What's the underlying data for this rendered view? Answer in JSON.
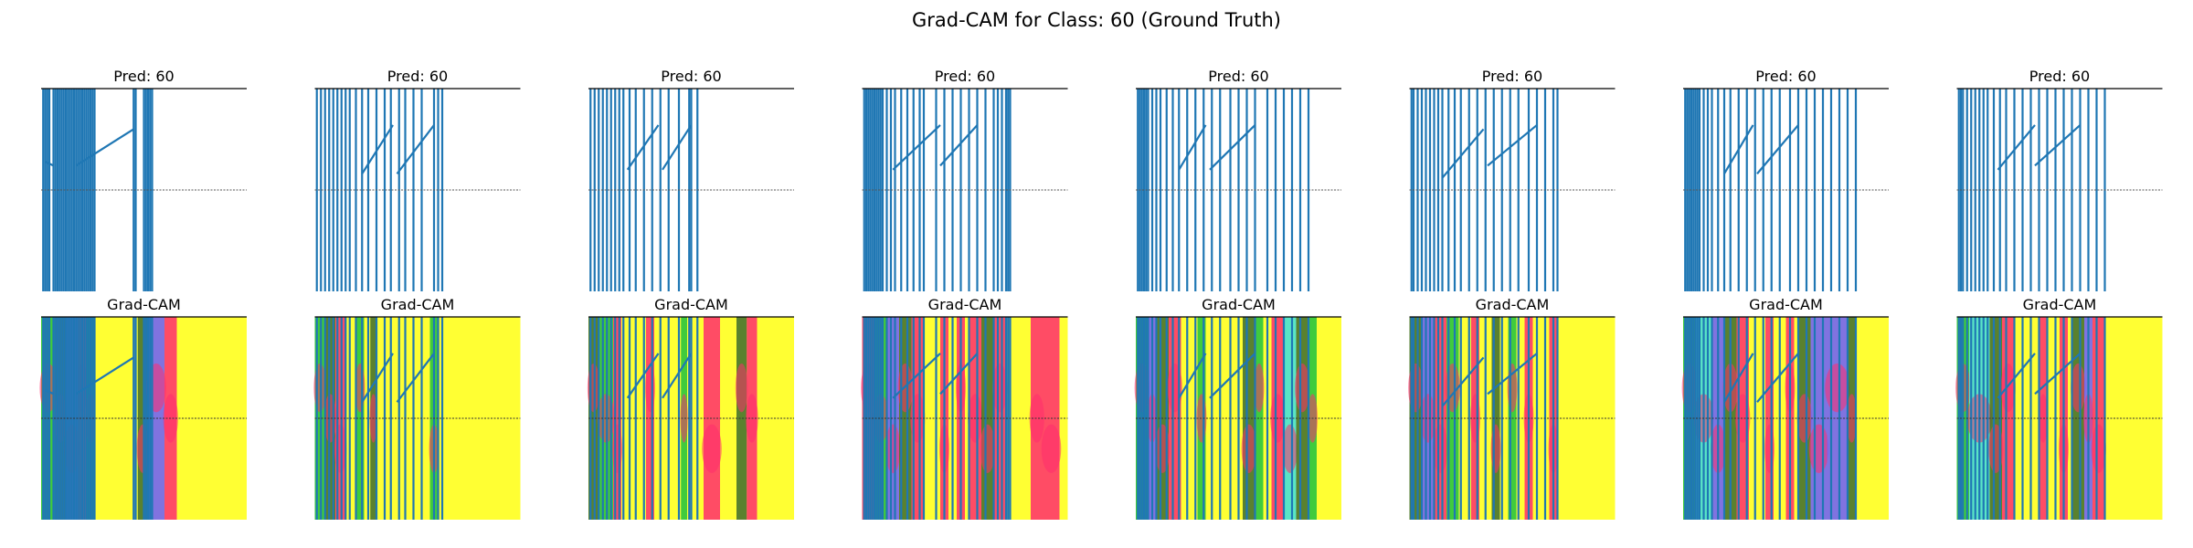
{
  "figure": {
    "title": "Grad-CAM for Class: 60 (Ground Truth)"
  },
  "colors": {
    "signal": "#1f77b4",
    "heat_low": "#ffff33",
    "heat_hot": "#ff2d6e",
    "heat_green": "#1fc23f",
    "heat_dark": "#3d6b2e",
    "heat_violet": "#6a5aff",
    "heat_cyan": "#3de0e0",
    "reference_line": "#555555",
    "frame": "#000000"
  },
  "chart_data": {
    "type": "line",
    "description_free": true,
    "row_titles": {
      "top_panel_title": "Pred: 60",
      "bottom_panel_title": "Grad-CAM"
    },
    "reference_line_level": 0.5,
    "ylim": [
      0,
      1
    ],
    "xlim": [
      0,
      1
    ],
    "samples": [
      {
        "pred_label": "Pred: 60",
        "cam_label": "Grad-CAM",
        "spikes_x": [
          0.01,
          0.02,
          0.03,
          0.04,
          0.06,
          0.07,
          0.08,
          0.09,
          0.1,
          0.11,
          0.12,
          0.13,
          0.14,
          0.15,
          0.16,
          0.17,
          0.18,
          0.19,
          0.2,
          0.21,
          0.22,
          0.23,
          0.24,
          0.25,
          0.26,
          0.45,
          0.46,
          0.5,
          0.51,
          0.52,
          0.53,
          0.54
        ],
        "ramps": [
          [
            0.17,
            0.62,
            0.45,
            0.8
          ],
          [
            0.02,
            0.64,
            0.06,
            0.62
          ]
        ],
        "heat": [
          {
            "x0": 0.0,
            "x1": 0.07,
            "tone": "heat_green"
          },
          {
            "x0": 0.07,
            "x1": 0.12,
            "tone": "heat_dark"
          },
          {
            "x0": 0.12,
            "x1": 0.18,
            "tone": "heat_violet"
          },
          {
            "x0": 0.18,
            "x1": 0.22,
            "tone": "heat_hot"
          },
          {
            "x0": 0.22,
            "x1": 0.26,
            "tone": "heat_green"
          },
          {
            "x0": 0.47,
            "x1": 0.52,
            "tone": "heat_dark"
          },
          {
            "x0": 0.52,
            "x1": 0.6,
            "tone": "heat_violet"
          },
          {
            "x0": 0.6,
            "x1": 0.66,
            "tone": "heat_hot"
          }
        ]
      },
      {
        "pred_label": "Pred: 60",
        "cam_label": "Grad-CAM",
        "spikes_x": [
          0.01,
          0.03,
          0.05,
          0.07,
          0.09,
          0.11,
          0.13,
          0.15,
          0.17,
          0.2,
          0.23,
          0.26,
          0.3,
          0.34,
          0.37,
          0.41,
          0.44,
          0.48,
          0.52,
          0.58,
          0.6,
          0.62
        ],
        "ramps": [
          [
            0.23,
            0.58,
            0.38,
            0.82
          ],
          [
            0.4,
            0.58,
            0.58,
            0.82
          ]
        ],
        "heat": [
          {
            "x0": 0.0,
            "x1": 0.05,
            "tone": "heat_green"
          },
          {
            "x0": 0.05,
            "x1": 0.1,
            "tone": "heat_dark"
          },
          {
            "x0": 0.1,
            "x1": 0.15,
            "tone": "heat_hot"
          },
          {
            "x0": 0.2,
            "x1": 0.24,
            "tone": "heat_green"
          },
          {
            "x0": 0.27,
            "x1": 0.3,
            "tone": "heat_dark"
          },
          {
            "x0": 0.56,
            "x1": 0.6,
            "tone": "heat_green"
          }
        ]
      },
      {
        "pred_label": "Pred: 60",
        "cam_label": "Grad-CAM",
        "spikes_x": [
          0.01,
          0.03,
          0.05,
          0.07,
          0.09,
          0.11,
          0.13,
          0.15,
          0.17,
          0.2,
          0.23,
          0.27,
          0.31,
          0.35,
          0.39,
          0.44,
          0.49,
          0.5,
          0.53
        ],
        "ramps": [
          [
            0.19,
            0.6,
            0.34,
            0.82
          ],
          [
            0.36,
            0.6,
            0.5,
            0.82
          ]
        ],
        "heat": [
          {
            "x0": 0.0,
            "x1": 0.05,
            "tone": "heat_dark"
          },
          {
            "x0": 0.05,
            "x1": 0.12,
            "tone": "heat_green"
          },
          {
            "x0": 0.12,
            "x1": 0.16,
            "tone": "heat_hot"
          },
          {
            "x0": 0.28,
            "x1": 0.32,
            "tone": "heat_hot"
          },
          {
            "x0": 0.45,
            "x1": 0.48,
            "tone": "heat_green"
          },
          {
            "x0": 0.56,
            "x1": 0.64,
            "tone": "heat_hot"
          },
          {
            "x0": 0.72,
            "x1": 0.77,
            "tone": "heat_dark"
          },
          {
            "x0": 0.77,
            "x1": 0.82,
            "tone": "heat_hot"
          }
        ]
      },
      {
        "pred_label": "Pred: 60",
        "cam_label": "Grad-CAM",
        "spikes_x": [
          0.01,
          0.02,
          0.03,
          0.04,
          0.05,
          0.06,
          0.07,
          0.08,
          0.09,
          0.1,
          0.12,
          0.14,
          0.16,
          0.19,
          0.22,
          0.25,
          0.28,
          0.3,
          0.36,
          0.4,
          0.44,
          0.48,
          0.52,
          0.56,
          0.6,
          0.64,
          0.66,
          0.68,
          0.7,
          0.71,
          0.72
        ],
        "ramps": [
          [
            0.15,
            0.6,
            0.38,
            0.82
          ],
          [
            0.38,
            0.62,
            0.56,
            0.82
          ]
        ],
        "heat": [
          {
            "x0": 0.0,
            "x1": 0.06,
            "tone": "heat_hot"
          },
          {
            "x0": 0.06,
            "x1": 0.12,
            "tone": "heat_green"
          },
          {
            "x0": 0.12,
            "x1": 0.18,
            "tone": "heat_violet"
          },
          {
            "x0": 0.18,
            "x1": 0.24,
            "tone": "heat_dark"
          },
          {
            "x0": 0.24,
            "x1": 0.3,
            "tone": "heat_hot"
          },
          {
            "x0": 0.38,
            "x1": 0.42,
            "tone": "heat_hot"
          },
          {
            "x0": 0.46,
            "x1": 0.5,
            "tone": "heat_hot"
          },
          {
            "x0": 0.52,
            "x1": 0.58,
            "tone": "heat_hot"
          },
          {
            "x0": 0.58,
            "x1": 0.64,
            "tone": "heat_dark"
          },
          {
            "x0": 0.64,
            "x1": 0.7,
            "tone": "heat_hot"
          },
          {
            "x0": 0.82,
            "x1": 0.88,
            "tone": "heat_hot"
          },
          {
            "x0": 0.88,
            "x1": 0.96,
            "tone": "heat_hot"
          }
        ]
      },
      {
        "pred_label": "Pred: 60",
        "cam_label": "Grad-CAM",
        "spikes_x": [
          0.01,
          0.02,
          0.03,
          0.04,
          0.05,
          0.06,
          0.08,
          0.1,
          0.12,
          0.15,
          0.18,
          0.21,
          0.25,
          0.29,
          0.33,
          0.37,
          0.41,
          0.46,
          0.5,
          0.54,
          0.58,
          0.64,
          0.68,
          0.72,
          0.76,
          0.8,
          0.84
        ],
        "ramps": [
          [
            0.21,
            0.6,
            0.34,
            0.82
          ],
          [
            0.36,
            0.6,
            0.58,
            0.82
          ]
        ],
        "heat": [
          {
            "x0": 0.0,
            "x1": 0.06,
            "tone": "heat_green"
          },
          {
            "x0": 0.06,
            "x1": 0.1,
            "tone": "heat_violet"
          },
          {
            "x0": 0.1,
            "x1": 0.16,
            "tone": "heat_dark"
          },
          {
            "x0": 0.16,
            "x1": 0.22,
            "tone": "heat_hot"
          },
          {
            "x0": 0.3,
            "x1": 0.34,
            "tone": "heat_green"
          },
          {
            "x0": 0.52,
            "x1": 0.58,
            "tone": "heat_dark"
          },
          {
            "x0": 0.58,
            "x1": 0.62,
            "tone": "heat_green"
          },
          {
            "x0": 0.66,
            "x1": 0.72,
            "tone": "heat_hot"
          },
          {
            "x0": 0.72,
            "x1": 0.78,
            "tone": "heat_cyan"
          },
          {
            "x0": 0.78,
            "x1": 0.84,
            "tone": "heat_dark"
          },
          {
            "x0": 0.84,
            "x1": 0.88,
            "tone": "heat_green"
          }
        ]
      },
      {
        "pred_label": "Pred: 60",
        "cam_label": "Grad-CAM",
        "spikes_x": [
          0.01,
          0.02,
          0.04,
          0.06,
          0.08,
          0.1,
          0.12,
          0.14,
          0.16,
          0.19,
          0.22,
          0.25,
          0.29,
          0.33,
          0.37,
          0.41,
          0.45,
          0.49,
          0.53,
          0.58,
          0.62,
          0.66,
          0.7,
          0.72
        ],
        "ramps": [
          [
            0.16,
            0.56,
            0.36,
            0.8
          ],
          [
            0.38,
            0.62,
            0.62,
            0.82
          ]
        ],
        "heat": [
          {
            "x0": 0.0,
            "x1": 0.06,
            "tone": "heat_dark"
          },
          {
            "x0": 0.06,
            "x1": 0.12,
            "tone": "heat_violet"
          },
          {
            "x0": 0.12,
            "x1": 0.18,
            "tone": "heat_hot"
          },
          {
            "x0": 0.18,
            "x1": 0.24,
            "tone": "heat_green"
          },
          {
            "x0": 0.3,
            "x1": 0.34,
            "tone": "heat_hot"
          },
          {
            "x0": 0.4,
            "x1": 0.44,
            "tone": "heat_dark"
          },
          {
            "x0": 0.48,
            "x1": 0.52,
            "tone": "heat_green"
          },
          {
            "x0": 0.56,
            "x1": 0.6,
            "tone": "heat_hot"
          },
          {
            "x0": 0.68,
            "x1": 0.72,
            "tone": "heat_hot"
          }
        ]
      },
      {
        "pred_label": "Pred: 60",
        "cam_label": "Grad-CAM",
        "spikes_x": [
          0.01,
          0.02,
          0.03,
          0.04,
          0.05,
          0.06,
          0.07,
          0.08,
          0.1,
          0.12,
          0.14,
          0.17,
          0.2,
          0.23,
          0.27,
          0.31,
          0.35,
          0.39,
          0.43,
          0.47,
          0.52,
          0.56,
          0.6,
          0.64,
          0.68,
          0.72,
          0.76,
          0.8,
          0.84
        ],
        "ramps": [
          [
            0.2,
            0.58,
            0.34,
            0.82
          ],
          [
            0.36,
            0.58,
            0.56,
            0.82
          ]
        ],
        "heat": [
          {
            "x0": 0.0,
            "x1": 0.06,
            "tone": "heat_green"
          },
          {
            "x0": 0.06,
            "x1": 0.14,
            "tone": "heat_cyan"
          },
          {
            "x0": 0.14,
            "x1": 0.2,
            "tone": "heat_violet"
          },
          {
            "x0": 0.2,
            "x1": 0.26,
            "tone": "heat_dark"
          },
          {
            "x0": 0.26,
            "x1": 0.32,
            "tone": "heat_hot"
          },
          {
            "x0": 0.4,
            "x1": 0.44,
            "tone": "heat_hot"
          },
          {
            "x0": 0.5,
            "x1": 0.54,
            "tone": "heat_hot"
          },
          {
            "x0": 0.56,
            "x1": 0.62,
            "tone": "heat_dark"
          },
          {
            "x0": 0.62,
            "x1": 0.7,
            "tone": "heat_violet"
          },
          {
            "x0": 0.7,
            "x1": 0.8,
            "tone": "heat_violet"
          },
          {
            "x0": 0.8,
            "x1": 0.84,
            "tone": "heat_dark"
          }
        ]
      },
      {
        "pred_label": "Pred: 60",
        "cam_label": "Grad-CAM",
        "spikes_x": [
          0.01,
          0.02,
          0.03,
          0.05,
          0.07,
          0.09,
          0.11,
          0.13,
          0.15,
          0.18,
          0.21,
          0.24,
          0.28,
          0.32,
          0.36,
          0.4,
          0.44,
          0.48,
          0.52,
          0.56,
          0.6,
          0.64,
          0.68,
          0.72
        ],
        "ramps": [
          [
            0.2,
            0.6,
            0.38,
            0.82
          ],
          [
            0.38,
            0.62,
            0.6,
            0.82
          ]
        ],
        "heat": [
          {
            "x0": 0.0,
            "x1": 0.06,
            "tone": "heat_green"
          },
          {
            "x0": 0.06,
            "x1": 0.16,
            "tone": "heat_cyan"
          },
          {
            "x0": 0.16,
            "x1": 0.22,
            "tone": "heat_dark"
          },
          {
            "x0": 0.22,
            "x1": 0.28,
            "tone": "heat_hot"
          },
          {
            "x0": 0.4,
            "x1": 0.44,
            "tone": "heat_hot"
          },
          {
            "x0": 0.5,
            "x1": 0.54,
            "tone": "heat_hot"
          },
          {
            "x0": 0.56,
            "x1": 0.62,
            "tone": "heat_dark"
          },
          {
            "x0": 0.62,
            "x1": 0.66,
            "tone": "heat_violet"
          },
          {
            "x0": 0.66,
            "x1": 0.72,
            "tone": "heat_hot"
          }
        ]
      }
    ]
  }
}
